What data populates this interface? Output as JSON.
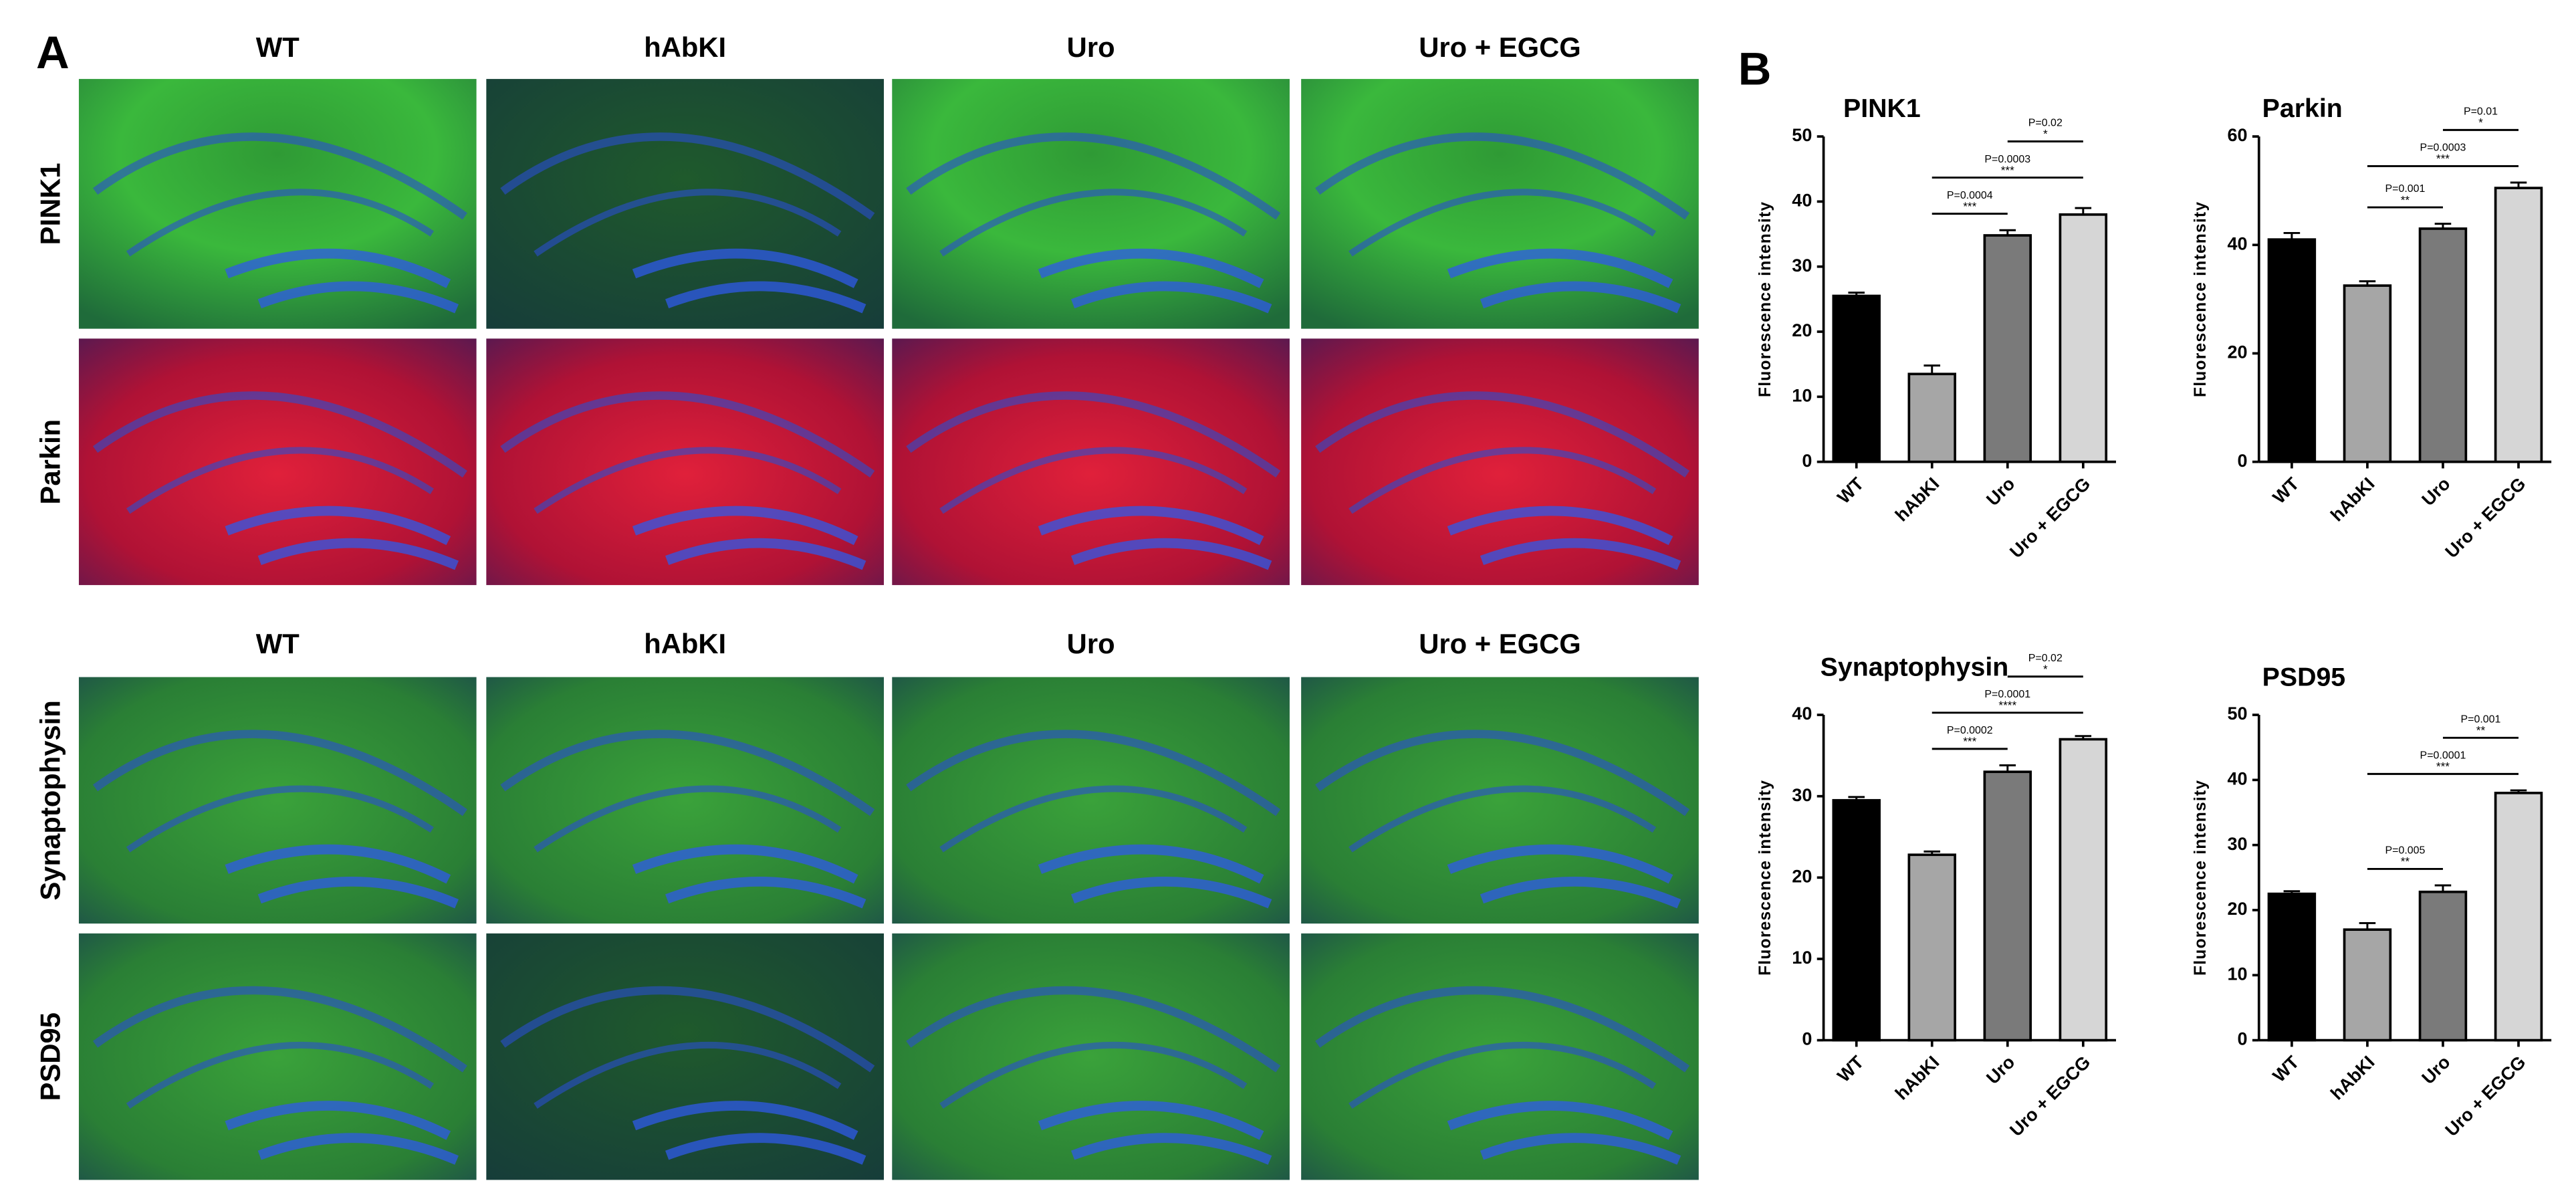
{
  "panel_a": {
    "label": "A",
    "columns_top": [
      "WT",
      "hAbKI",
      "Uro",
      "Uro + EGCG"
    ],
    "columns_bottom": [
      "WT",
      "hAbKI",
      "Uro",
      "Uro + EGCG"
    ],
    "rows": [
      "PINK1",
      "Parkin",
      "Synaptophysin",
      "PSD95"
    ]
  },
  "panel_b": {
    "label": "B"
  },
  "chart_data": [
    {
      "type": "bar",
      "title": "PINK1",
      "y_label": "Fluorescence intensity",
      "categories": [
        "WT",
        "hAbKI",
        "Uro",
        "Uro + EGCG"
      ],
      "values": [
        25.5,
        13.5,
        34.8,
        38
      ],
      "errors": [
        0.5,
        1.3,
        0.8,
        1
      ],
      "colors": [
        "#000000",
        "#a6a6a6",
        "#7a7a7a",
        "#d6d6d6"
      ],
      "ylim": [
        0,
        50
      ],
      "yticks": [
        0,
        10,
        20,
        30,
        40,
        50
      ],
      "comparisons": [
        {
          "between": [
            "hAbKI",
            "Uro"
          ],
          "p": "P=0.0004",
          "stars": "***"
        },
        {
          "between": [
            "hAbKI",
            "Uro + EGCG"
          ],
          "p": "P=0.0003",
          "stars": "***"
        },
        {
          "between": [
            "Uro",
            "Uro + EGCG"
          ],
          "p": "P=0.02",
          "stars": "*"
        }
      ]
    },
    {
      "type": "bar",
      "title": "Parkin",
      "y_label": "Fluorescence intensity",
      "categories": [
        "WT",
        "hAbKI",
        "Uro",
        "Uro + EGCG"
      ],
      "values": [
        41,
        32.5,
        43,
        50.5
      ],
      "errors": [
        1.2,
        0.8,
        0.9,
        1
      ],
      "colors": [
        "#000000",
        "#a6a6a6",
        "#7a7a7a",
        "#d6d6d6"
      ],
      "ylim": [
        0,
        60
      ],
      "yticks": [
        0,
        20,
        40,
        60
      ],
      "comparisons": [
        {
          "between": [
            "hAbKI",
            "Uro"
          ],
          "p": "P=0.001",
          "stars": "**"
        },
        {
          "between": [
            "hAbKI",
            "Uro + EGCG"
          ],
          "p": "P=0.0003",
          "stars": "***"
        },
        {
          "between": [
            "Uro",
            "Uro + EGCG"
          ],
          "p": "P=0.01",
          "stars": "*"
        }
      ]
    },
    {
      "type": "bar",
      "title": "Synaptophysin",
      "y_label": "Fluorescence intensity",
      "categories": [
        "WT",
        "hAbKI",
        "Uro",
        "Uro + EGCG"
      ],
      "values": [
        29.5,
        22.8,
        33,
        37
      ],
      "errors": [
        0.4,
        0.4,
        0.8,
        0.4
      ],
      "colors": [
        "#000000",
        "#a6a6a6",
        "#7a7a7a",
        "#d6d6d6"
      ],
      "ylim": [
        0,
        40
      ],
      "yticks": [
        0,
        10,
        20,
        30,
        40
      ],
      "comparisons": [
        {
          "between": [
            "hAbKI",
            "Uro"
          ],
          "p": "P=0.0002",
          "stars": "***"
        },
        {
          "between": [
            "hAbKI",
            "Uro + EGCG"
          ],
          "p": "P=0.0001",
          "stars": "****"
        },
        {
          "between": [
            "Uro",
            "Uro + EGCG"
          ],
          "p": "P=0.02",
          "stars": "*"
        }
      ]
    },
    {
      "type": "bar",
      "title": "PSD95",
      "y_label": "Fluorescence intensity",
      "categories": [
        "WT",
        "hAbKI",
        "Uro",
        "Uro + EGCG"
      ],
      "values": [
        22.5,
        17,
        22.8,
        38
      ],
      "errors": [
        0.4,
        1,
        1,
        0.4
      ],
      "colors": [
        "#000000",
        "#a6a6a6",
        "#7a7a7a",
        "#d6d6d6"
      ],
      "ylim": [
        0,
        50
      ],
      "yticks": [
        0,
        10,
        20,
        30,
        40,
        50
      ],
      "comparisons": [
        {
          "between": [
            "hAbKI",
            "Uro"
          ],
          "p": "P=0.005",
          "stars": "**"
        },
        {
          "between": [
            "hAbKI",
            "Uro + EGCG"
          ],
          "p": "P=0.0001",
          "stars": "***"
        },
        {
          "between": [
            "Uro",
            "Uro + EGCG"
          ],
          "p": "P=0.001",
          "stars": "**"
        }
      ]
    }
  ]
}
